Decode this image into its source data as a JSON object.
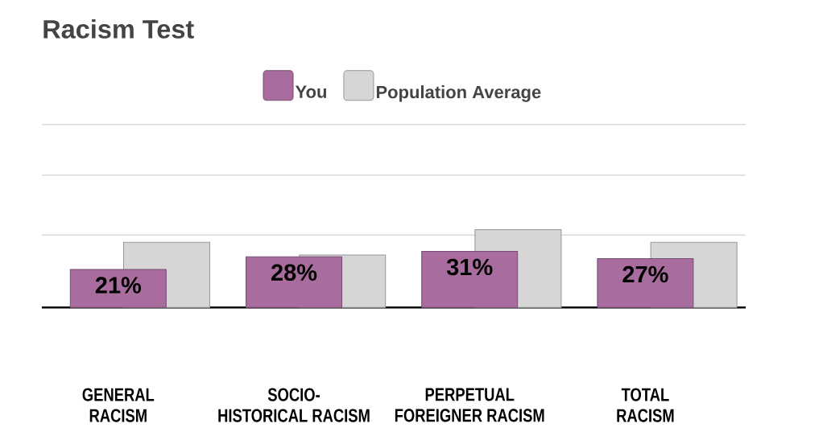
{
  "chart_data": {
    "type": "bar",
    "title": "Racism Test",
    "categories": [
      "GENERAL\nRACISM",
      "SOCIO-\nHISTORICAL RACISM",
      "PERPETUAL\nFOREIGNER RACISM",
      "TOTAL\nRACISM"
    ],
    "series": [
      {
        "name": "You",
        "color": "#a86c9e",
        "values": [
          21,
          28,
          31,
          27
        ],
        "value_labels": [
          "21%",
          "28%",
          "31%",
          "27%"
        ]
      },
      {
        "name": "Population Average",
        "color": "#d6d6d6",
        "values": [
          36,
          29,
          43,
          36
        ]
      }
    ],
    "ylim": [
      0,
      101
    ],
    "yticks": [
      {
        "value": 40,
        "label": null
      },
      {
        "value": 73,
        "label": null
      },
      {
        "value": 101,
        "label": null
      }
    ],
    "grid": "y",
    "legend": "top",
    "tick_labels": "x"
  }
}
